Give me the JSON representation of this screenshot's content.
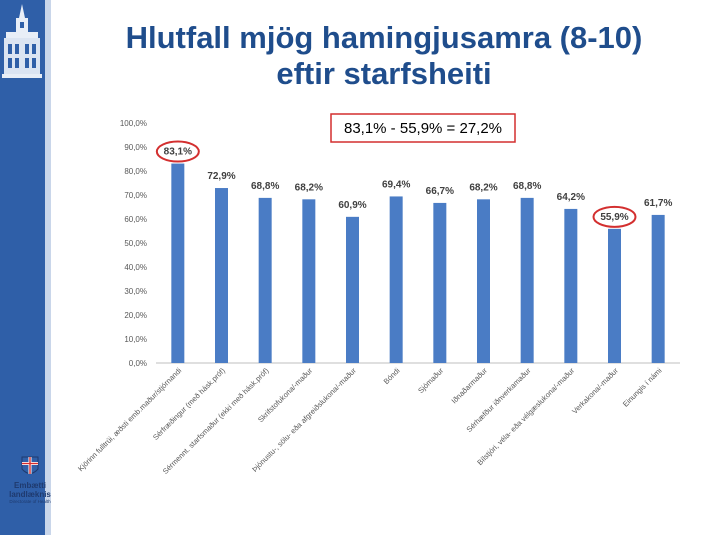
{
  "title_line1": "Hlutfall mjög hamingjusamra (8-10)",
  "title_line2": "eftir starfsheiti",
  "logo": {
    "line1": "Embætti",
    "line2": "landlæknis",
    "line3": "Directorate of Health"
  },
  "colors": {
    "bar": "#4a7cc5",
    "sidebar": "#2f5fa8",
    "title": "#1f4d8c",
    "highlight": "#d32f2f"
  },
  "annotation": "83,1% - 55,9% = 27,2%",
  "chart_data": {
    "type": "bar",
    "categories": [
      "Kjörinn fulltrúi, æðsti emb.maður/stjórnandi",
      "Sérfræðingur (með hásk.próf)",
      "Sérmennt. starfsmaður (ekki með hásk.próf)",
      "Skrifstofukona/-maður",
      "Þjónustu-, sölu- eða afgreiðslukona/-maður",
      "Bóndi",
      "Sjómaður",
      "Iðnaðarmaður",
      "Sérhæfður iðnverkamaður",
      "Bílstjóri, véla- eða vélgæslukona/-maður",
      "Verkakona/-maður",
      "Einungis í námi"
    ],
    "values": [
      83.1,
      72.9,
      68.8,
      68.2,
      60.9,
      69.4,
      66.7,
      68.2,
      68.8,
      64.2,
      55.9,
      61.7
    ],
    "value_labels": [
      "83,1%",
      "72,9%",
      "68,8%",
      "68,2%",
      "60,9%",
      "69,4%",
      "66,7%",
      "68,2%",
      "68,8%",
      "64,2%",
      "55,9%",
      "61,7%"
    ],
    "yticks": [
      "0,0%",
      "10,0%",
      "20,0%",
      "30,0%",
      "40,0%",
      "50,0%",
      "60,0%",
      "70,0%",
      "80,0%",
      "90,0%",
      "100,0%"
    ],
    "ylim": [
      0,
      100
    ],
    "highlighted": [
      0,
      10
    ],
    "grid": false
  }
}
